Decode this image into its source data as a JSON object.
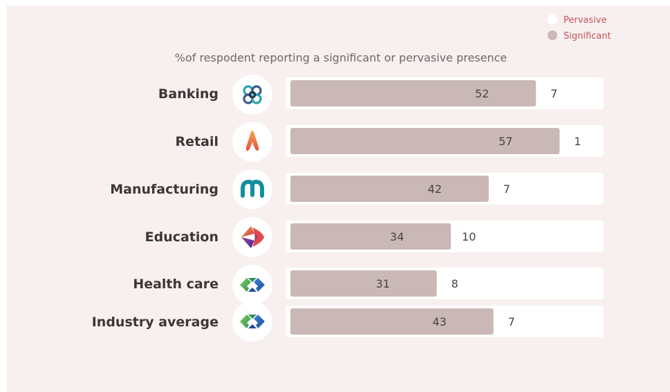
{
  "chart_data": {
    "type": "bar",
    "stacked": true,
    "orientation": "horizontal",
    "subtitle": "%of respodent reporting a significant or pervasive presence",
    "categories": [
      "Banking",
      "Retail",
      "Manufacturing",
      "Education",
      "Health care",
      "Industry average"
    ],
    "series": [
      {
        "name": "Significant",
        "values": [
          52,
          57,
          42,
          34,
          31,
          43
        ],
        "color": "#cab8b7"
      },
      {
        "name": "Pervasive",
        "values": [
          7,
          1,
          7,
          10,
          8,
          7
        ],
        "color": "#ffffff"
      }
    ],
    "icons": [
      "banking-logo-icon",
      "retail-logo-icon",
      "manufacturing-logo-icon",
      "education-logo-icon",
      "health-care-logo-icon",
      "industry-average-logo-icon"
    ],
    "legend": {
      "position": "top-right"
    },
    "grid": false
  }
}
